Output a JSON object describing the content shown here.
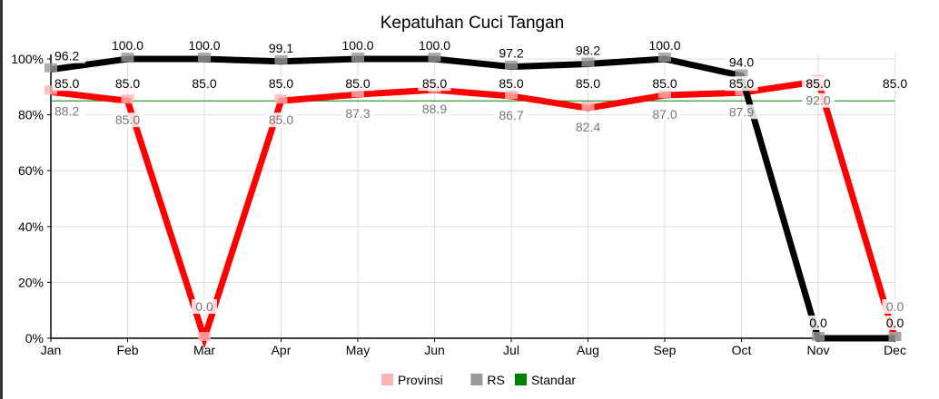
{
  "chart_data": {
    "type": "line",
    "title": "Kepatuhan Cuci Tangan",
    "categories": [
      "Jan",
      "Feb",
      "Mar",
      "Apr",
      "May",
      "Jun",
      "Jul",
      "Aug",
      "Sep",
      "Oct",
      "Nov",
      "Dec"
    ],
    "ylim": [
      0,
      100
    ],
    "yticks": [
      "0%",
      "20%",
      "40%",
      "60%",
      "80%",
      "100%"
    ],
    "ytick_values": [
      0,
      20,
      40,
      60,
      80,
      100
    ],
    "grid": true,
    "legend_position": "top",
    "series": [
      {
        "name": "Provinsi",
        "color": "#ff0000",
        "legend_color": "#ffb3b3",
        "values": [
          88.2,
          85.0,
          0.0,
          85.0,
          87.3,
          88.9,
          86.7,
          82.4,
          87.0,
          87.9,
          92.0,
          0.0
        ],
        "labels": [
          "88.2",
          "85.0",
          "0.0",
          "85.0",
          "87.3",
          "88.9",
          "86.7",
          "82.4",
          "87.0",
          "87.9",
          "92.0",
          "0.0"
        ]
      },
      {
        "name": "RS",
        "color": "#000000",
        "legend_color": "#999999",
        "values": [
          96.2,
          100.0,
          100.0,
          99.1,
          100.0,
          100.0,
          97.2,
          98.2,
          100.0,
          94.0,
          0.0,
          0.0
        ],
        "labels": [
          "96.2",
          "100.0",
          "100.0",
          "99.1",
          "100.0",
          "100.0",
          "97.2",
          "98.2",
          "100.0",
          "94.0",
          "0.0",
          "0.0"
        ]
      },
      {
        "name": "Standar",
        "color": "#008000",
        "legend_color": "#008000",
        "values": [
          85,
          85,
          85,
          85,
          85,
          85,
          85,
          85,
          85,
          85,
          85,
          85
        ],
        "labels": [
          "85.0",
          "85.0",
          "85.0",
          "85.0",
          "85.0",
          "85.0",
          "85.0",
          "85.0",
          "85.0",
          "85.0",
          "85.0",
          "85.0"
        ]
      }
    ]
  }
}
